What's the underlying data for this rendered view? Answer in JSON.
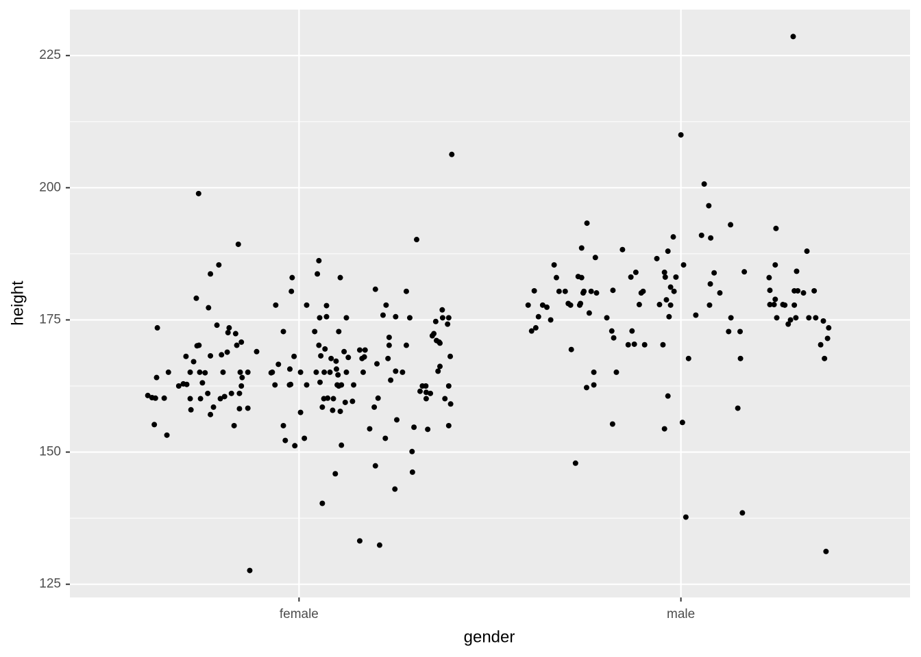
{
  "chart_data": {
    "type": "scatter",
    "x_label": "gender",
    "y_label": "height",
    "xlim": [
      0.4,
      2.6
    ],
    "xticks": [
      {
        "value": 1,
        "label": "female"
      },
      {
        "value": 2,
        "label": "male"
      }
    ],
    "ylim": [
      122.5,
      233.7
    ],
    "yticks": [
      125,
      150,
      175,
      200,
      225
    ],
    "y_minor_grid": [
      137.5,
      162.5,
      187.5,
      212.5
    ],
    "grid": true,
    "series": [
      {
        "color": "#000000",
        "x": [
          0.604,
          0.615,
          0.624,
          0.621,
          0.627,
          0.629,
          0.647,
          0.654,
          0.658,
          0.685,
          0.697,
          0.706,
          0.704,
          0.715,
          0.715,
          0.717,
          0.724,
          0.731,
          0.733,
          0.738,
          0.737,
          0.74,
          0.742,
          0.747,
          0.754,
          0.761,
          0.763,
          0.768,
          0.768,
          0.768,
          0.776,
          0.785,
          0.79,
          0.794,
          0.797,
          0.801,
          0.805,
          0.812,
          0.814,
          0.817,
          0.823,
          0.83,
          0.834,
          0.837,
          0.841,
          0.844,
          0.846,
          0.849,
          0.851,
          0.844,
          0.849,
          0.866,
          0.866,
          0.871,
          0.889,
          0.927,
          0.93,
          0.937,
          0.939,
          0.946,
          0.959,
          0.959,
          0.964,
          0.975,
          0.976,
          0.978,
          0.98,
          0.982,
          0.987,
          0.989,
          1.004,
          1.004,
          1.014,
          1.02,
          1.02,
          1.041,
          1.045,
          1.052,
          1.048,
          1.052,
          1.054,
          1.055,
          1.057,
          1.061,
          1.061,
          1.065,
          1.066,
          1.068,
          1.072,
          1.072,
          1.075,
          1.081,
          1.084,
          1.088,
          1.09,
          1.095,
          1.097,
          1.098,
          1.1,
          1.102,
          1.104,
          1.104,
          1.108,
          1.108,
          1.111,
          1.111,
          1.118,
          1.121,
          1.124,
          1.124,
          1.129,
          1.14,
          1.143,
          1.159,
          1.159,
          1.165,
          1.168,
          1.171,
          1.173,
          1.185,
          1.197,
          1.2,
          1.2,
          1.204,
          1.207,
          1.211,
          1.22,
          1.226,
          1.228,
          1.233,
          1.236,
          1.236,
          1.24,
          1.251,
          1.253,
          1.253,
          1.256,
          1.271,
          1.281,
          1.281,
          1.29,
          1.296,
          1.297,
          1.301,
          1.308,
          1.317,
          1.323,
          1.332,
          1.333,
          1.333,
          1.337,
          1.344,
          1.349,
          1.353,
          1.358,
          1.36,
          1.364,
          1.367,
          1.369,
          1.369,
          1.375,
          1.376,
          1.382,
          1.389,
          1.392,
          1.392,
          1.392,
          1.396,
          1.397,
          1.4,
          1.6,
          1.609,
          1.616,
          1.62,
          1.627,
          1.638,
          1.649,
          1.659,
          1.668,
          1.674,
          1.681,
          1.697,
          1.705,
          1.711,
          1.713,
          1.724,
          1.731,
          1.735,
          1.737,
          1.74,
          1.74,
          1.744,
          1.746,
          1.753,
          1.754,
          1.76,
          1.765,
          1.772,
          1.772,
          1.776,
          1.779,
          1.806,
          1.819,
          1.821,
          1.822,
          1.824,
          1.831,
          1.847,
          1.862,
          1.869,
          1.872,
          1.878,
          1.882,
          1.891,
          1.896,
          1.901,
          1.905,
          1.937,
          1.944,
          1.953,
          1.957,
          1.957,
          1.959,
          1.962,
          1.966,
          1.966,
          1.969,
          1.973,
          1.973,
          1.98,
          1.982,
          1.987,
          2.0,
          2.004,
          2.007,
          2.013,
          2.02,
          2.039,
          2.054,
          2.061,
          2.073,
          2.075,
          2.077,
          2.078,
          2.087,
          2.102,
          2.125,
          2.13,
          2.131,
          2.149,
          2.155,
          2.156,
          2.161,
          2.166,
          2.231,
          2.233,
          2.233,
          2.244,
          2.247,
          2.247,
          2.249,
          2.251,
          2.267,
          2.272,
          2.281,
          2.287,
          2.294,
          2.297,
          2.297,
          2.301,
          2.303,
          2.306,
          2.321,
          2.33,
          2.335,
          2.349,
          2.353,
          2.366,
          2.373,
          2.376,
          2.38,
          2.384,
          2.387
        ],
        "values": [
          160.7,
          160.3,
          160.2,
          155.2,
          164.1,
          173.5,
          160.2,
          153.2,
          165.1,
          162.5,
          162.9,
          162.8,
          168.1,
          165.1,
          160.1,
          158.0,
          167.1,
          179.1,
          170.1,
          170.2,
          198.9,
          165.1,
          160.1,
          163.1,
          165.0,
          161.1,
          177.3,
          183.7,
          168.2,
          157.1,
          158.5,
          174.0,
          185.4,
          160.1,
          168.4,
          165.1,
          160.5,
          168.9,
          172.6,
          173.5,
          161.1,
          155.0,
          172.4,
          170.2,
          189.3,
          158.2,
          165.1,
          162.5,
          164.1,
          161.1,
          170.8,
          165.1,
          158.3,
          127.6,
          169.0,
          165.0,
          165.1,
          162.7,
          177.8,
          166.6,
          172.8,
          155.0,
          152.2,
          162.7,
          165.7,
          162.8,
          180.4,
          183.0,
          168.1,
          151.2,
          165.1,
          157.5,
          152.6,
          177.8,
          162.7,
          172.8,
          165.1,
          186.2,
          183.7,
          170.2,
          175.4,
          163.2,
          168.2,
          158.5,
          140.3,
          160.1,
          165.1,
          169.5,
          175.6,
          177.7,
          160.2,
          165.1,
          167.7,
          157.9,
          160.1,
          145.9,
          167.2,
          165.7,
          162.7,
          164.6,
          172.8,
          162.5,
          183.0,
          157.7,
          151.3,
          162.7,
          169.0,
          159.4,
          175.4,
          165.1,
          167.9,
          159.6,
          162.7,
          133.2,
          169.3,
          167.7,
          165.1,
          168.0,
          169.3,
          154.4,
          158.5,
          147.4,
          180.8,
          166.7,
          160.2,
          132.4,
          175.9,
          152.6,
          177.8,
          167.7,
          171.7,
          170.2,
          163.6,
          143.0,
          175.6,
          165.3,
          156.1,
          165.1,
          170.2,
          180.4,
          175.4,
          150.1,
          146.2,
          154.7,
          190.2,
          161.5,
          162.5,
          162.5,
          160.1,
          161.3,
          154.3,
          161.1,
          172.0,
          172.4,
          174.7,
          171.1,
          165.3,
          170.8,
          166.2,
          170.6,
          176.9,
          175.4,
          160.1,
          174.2,
          162.5,
          155.0,
          175.4,
          168.1,
          159.1,
          206.3,
          177.8,
          172.9,
          180.5,
          173.5,
          175.6,
          177.8,
          177.4,
          175.0,
          185.4,
          183.0,
          180.4,
          180.4,
          178.1,
          177.8,
          169.4,
          147.9,
          183.2,
          177.8,
          178.1,
          188.6,
          183.0,
          180.1,
          180.4,
          162.2,
          193.3,
          176.3,
          180.4,
          165.1,
          162.7,
          186.8,
          180.1,
          175.4,
          172.9,
          155.3,
          180.6,
          171.6,
          165.1,
          188.3,
          170.3,
          183.1,
          172.9,
          170.4,
          184.0,
          177.9,
          180.1,
          180.4,
          170.3,
          186.6,
          177.9,
          170.3,
          184.0,
          154.4,
          183.1,
          178.8,
          160.6,
          188.0,
          175.6,
          177.8,
          181.2,
          190.7,
          180.4,
          183.1,
          210.0,
          155.6,
          185.4,
          137.7,
          167.7,
          175.9,
          191.0,
          200.7,
          196.6,
          177.8,
          181.8,
          190.5,
          183.9,
          180.1,
          172.8,
          193.0,
          175.4,
          158.3,
          172.8,
          167.7,
          138.5,
          184.1,
          183.0,
          180.6,
          177.9,
          177.9,
          178.9,
          185.4,
          192.3,
          175.4,
          177.9,
          177.8,
          174.2,
          175.0,
          228.6,
          177.8,
          180.5,
          175.4,
          184.2,
          180.5,
          180.1,
          188.0,
          175.4,
          180.5,
          175.4,
          170.3,
          174.8,
          167.7,
          131.2,
          171.5,
          173.5
        ]
      }
    ]
  }
}
